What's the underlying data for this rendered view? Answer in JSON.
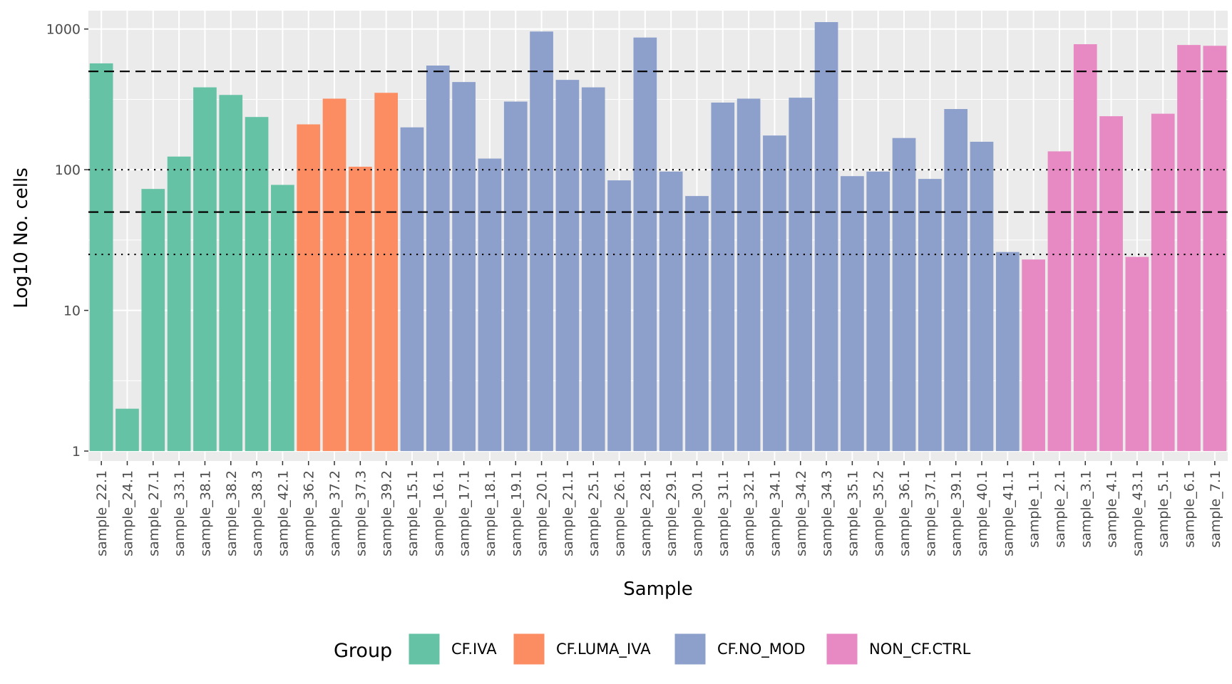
{
  "chart_data": {
    "type": "bar",
    "title": "",
    "xlabel": "Sample",
    "ylabel": "Log10 No. cells",
    "y_scale": "log10",
    "ylim": [
      0.85,
      1350
    ],
    "y_ticks": [
      1,
      10,
      100,
      1000
    ],
    "y_tick_labels": [
      "1",
      "10",
      "100",
      "1000"
    ],
    "reference_lines": [
      {
        "value": 500,
        "style": "dashed"
      },
      {
        "value": 100,
        "style": "dotted"
      },
      {
        "value": 50,
        "style": "dashed"
      },
      {
        "value": 25,
        "style": "dotted"
      }
    ],
    "legend_title": "Group",
    "legend_position": "bottom",
    "groups": [
      {
        "name": "CF.IVA",
        "color": "#66c2a5"
      },
      {
        "name": "CF.LUMA_IVA",
        "color": "#fc8d62"
      },
      {
        "name": "CF.NO_MOD",
        "color": "#8da0cb"
      },
      {
        "name": "NON_CF.CTRL",
        "color": "#e78ac3"
      }
    ],
    "categories": [
      "sample_22.1",
      "sample_24.1",
      "sample_27.1",
      "sample_33.1",
      "sample_38.1",
      "sample_38.2",
      "sample_38.3",
      "sample_42.1",
      "sample_36.2",
      "sample_37.2",
      "sample_37.3",
      "sample_39.2",
      "sample_15.1",
      "sample_16.1",
      "sample_17.1",
      "sample_18.1",
      "sample_19.1",
      "sample_20.1",
      "sample_21.1",
      "sample_25.1",
      "sample_26.1",
      "sample_28.1",
      "sample_29.1",
      "sample_30.1",
      "sample_31.1",
      "sample_32.1",
      "sample_34.1",
      "sample_34.2",
      "sample_34.3",
      "sample_35.1",
      "sample_35.2",
      "sample_36.1",
      "sample_37.1",
      "sample_39.1",
      "sample_40.1",
      "sample_41.1",
      "sample_1.1",
      "sample_2.1",
      "sample_3.1",
      "sample_4.1",
      "sample_43.1",
      "sample_5.1",
      "sample_6.1",
      "sample_7.1"
    ],
    "values": [
      570,
      2,
      73,
      124,
      385,
      340,
      237,
      78,
      210,
      320,
      105,
      352,
      200,
      550,
      420,
      120,
      305,
      960,
      435,
      385,
      84,
      870,
      97,
      65,
      300,
      320,
      175,
      325,
      1120,
      90,
      97,
      168,
      86,
      270,
      158,
      26,
      23,
      135,
      780,
      240,
      24,
      250,
      770,
      760
    ],
    "group_of": [
      "CF.IVA",
      "CF.IVA",
      "CF.IVA",
      "CF.IVA",
      "CF.IVA",
      "CF.IVA",
      "CF.IVA",
      "CF.IVA",
      "CF.LUMA_IVA",
      "CF.LUMA_IVA",
      "CF.LUMA_IVA",
      "CF.LUMA_IVA",
      "CF.NO_MOD",
      "CF.NO_MOD",
      "CF.NO_MOD",
      "CF.NO_MOD",
      "CF.NO_MOD",
      "CF.NO_MOD",
      "CF.NO_MOD",
      "CF.NO_MOD",
      "CF.NO_MOD",
      "CF.NO_MOD",
      "CF.NO_MOD",
      "CF.NO_MOD",
      "CF.NO_MOD",
      "CF.NO_MOD",
      "CF.NO_MOD",
      "CF.NO_MOD",
      "CF.NO_MOD",
      "CF.NO_MOD",
      "CF.NO_MOD",
      "CF.NO_MOD",
      "CF.NO_MOD",
      "CF.NO_MOD",
      "CF.NO_MOD",
      "CF.NO_MOD",
      "NON_CF.CTRL",
      "NON_CF.CTRL",
      "NON_CF.CTRL",
      "NON_CF.CTRL",
      "NON_CF.CTRL",
      "NON_CF.CTRL",
      "NON_CF.CTRL",
      "NON_CF.CTRL"
    ]
  }
}
